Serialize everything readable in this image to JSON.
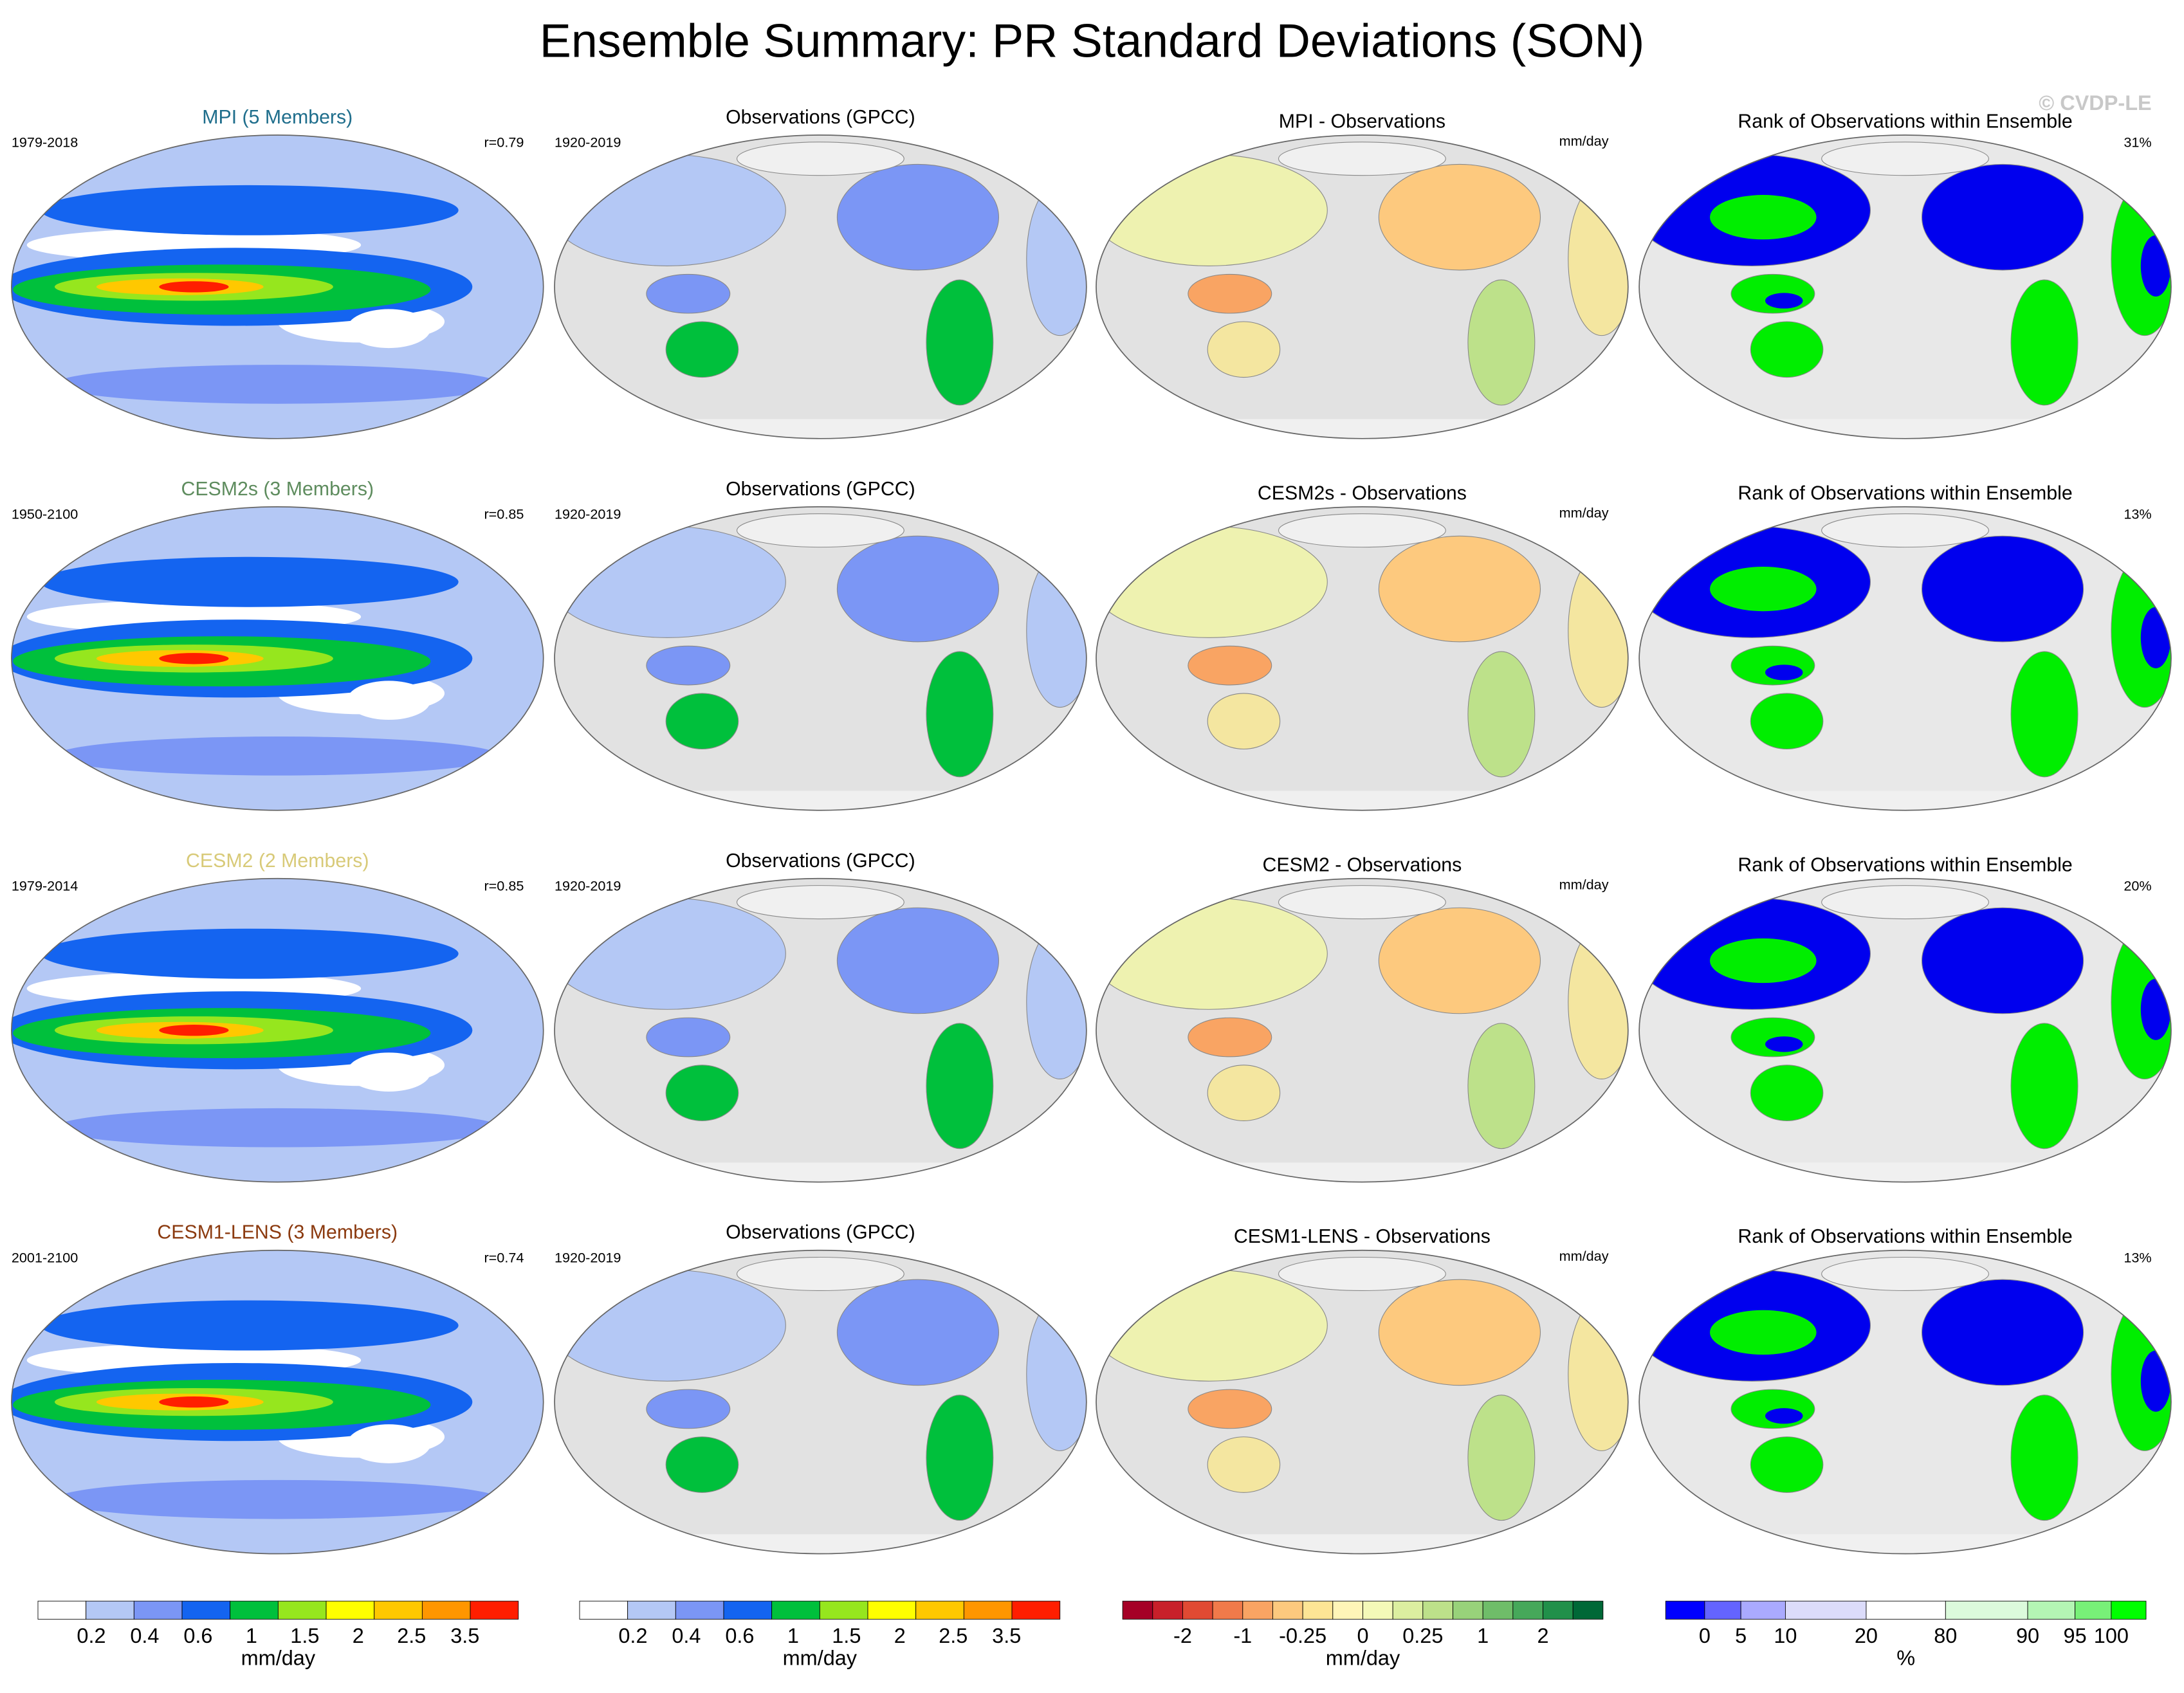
{
  "title": "Ensemble Summary: PR Standard Deviations (SON)",
  "watermark": "© CVDP-LE",
  "rows": [
    {
      "model": {
        "title": "MPI (5 Members)",
        "title_color": "#1f6e8c",
        "period": "1979-2018",
        "corr": "r=0.79"
      },
      "obs": {
        "title": "Observations (GPCC)",
        "period": "1920-2019"
      },
      "diff": {
        "title": "MPI - Observations",
        "units": "mm/day"
      },
      "rank": {
        "title": "Rank of Observations within Ensemble",
        "pct": "31%"
      }
    },
    {
      "model": {
        "title": "CESM2s (3 Members)",
        "title_color": "#5e8c5e",
        "period": "1950-2100",
        "corr": "r=0.85"
      },
      "obs": {
        "title": "Observations (GPCC)",
        "period": "1920-2019"
      },
      "diff": {
        "title": "CESM2s - Observations",
        "units": "mm/day"
      },
      "rank": {
        "title": "Rank of Observations within Ensemble",
        "pct": "13%"
      }
    },
    {
      "model": {
        "title": "CESM2 (2 Members)",
        "title_color": "#d8ca78",
        "period": "1979-2014",
        "corr": "r=0.85"
      },
      "obs": {
        "title": "Observations (GPCC)",
        "period": "1920-2019"
      },
      "diff": {
        "title": "CESM2 - Observations",
        "units": "mm/day"
      },
      "rank": {
        "title": "Rank of Observations within Ensemble",
        "pct": "20%"
      }
    },
    {
      "model": {
        "title": "CESM1-LENS (3 Members)",
        "title_color": "#8b3a0f",
        "period": "2001-2100",
        "corr": "r=0.74"
      },
      "obs": {
        "title": "Observations (GPCC)",
        "period": "1920-2019"
      },
      "diff": {
        "title": "CESM1-LENS - Observations",
        "units": "mm/day"
      },
      "rank": {
        "title": "Rank of Observations within Ensemble",
        "pct": "13%"
      }
    }
  ],
  "colorbars": [
    {
      "colors": [
        "#ffffff",
        "#b4c8f5",
        "#7b96f5",
        "#1464f0",
        "#00c03c",
        "#96e61e",
        "#ffff00",
        "#ffc800",
        "#ff9600",
        "#ff1e00"
      ],
      "labels": [
        "0.2",
        "0.4",
        "0.6",
        "1",
        "1.5",
        "2",
        "2.5",
        "3.5"
      ],
      "units": "mm/day"
    },
    {
      "colors": [
        "#ffffff",
        "#b4c8f5",
        "#7b96f5",
        "#1464f0",
        "#00c03c",
        "#96e61e",
        "#ffff00",
        "#ffc800",
        "#ff9600",
        "#ff1e00"
      ],
      "labels": [
        "0.2",
        "0.4",
        "0.6",
        "1",
        "1.5",
        "2",
        "2.5",
        "3.5"
      ],
      "units": "mm/day"
    },
    {
      "colors": [
        "#a50026",
        "#c8202a",
        "#e04a33",
        "#f07a4a",
        "#f9a463",
        "#fdc97e",
        "#fee595",
        "#fff5b8",
        "#f4f9b8",
        "#dcefa0",
        "#bde18a",
        "#98d27a",
        "#6fbd69",
        "#46a85a",
        "#21904a",
        "#006837"
      ],
      "labels": [
        "-2",
        "-1",
        "-0.25",
        "0",
        "0.25",
        "1",
        "2"
      ],
      "units": "mm/day"
    },
    {
      "colors": [
        "#0000ff",
        "#6464ff",
        "#aaaaff",
        "#dcdcfa",
        "#ffffff",
        "#dcfadc",
        "#b4f5b4",
        "#78f078",
        "#00ff00"
      ],
      "labels": [
        "0",
        "5",
        "10",
        "20",
        "80",
        "90",
        "95",
        "100"
      ],
      "units": "%"
    }
  ]
}
